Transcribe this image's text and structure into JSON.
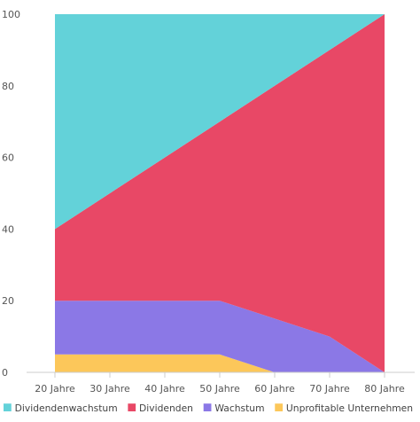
{
  "chart_data": {
    "type": "area",
    "stacked": true,
    "categories": [
      "20 Jahre",
      "30 Jahre",
      "40 Jahre",
      "50 Jahre",
      "60 Jahre",
      "70 Jahre",
      "80 Jahre"
    ],
    "series": [
      {
        "name": "Unprofitable Unternehmen",
        "color": "#fcc75a",
        "values": [
          5,
          5,
          5,
          5,
          0,
          0,
          0
        ]
      },
      {
        "name": "Wachstum",
        "color": "#8b78e6",
        "values": [
          15,
          15,
          15,
          15,
          15,
          10,
          0
        ]
      },
      {
        "name": "Dividenden",
        "color": "#e84866",
        "values": [
          20,
          30,
          40,
          50,
          65,
          80,
          100
        ]
      },
      {
        "name": "Dividendenwachstum",
        "color": "#63d2d9",
        "values": [
          60,
          50,
          40,
          30,
          20,
          10,
          0
        ]
      }
    ],
    "legend_order": [
      "Dividendenwachstum",
      "Dividenden",
      "Wachstum",
      "Unprofitable Unternehmen"
    ],
    "y_ticks": [
      "0",
      "20",
      "40",
      "60",
      "80",
      "100"
    ],
    "ylim": [
      0,
      100
    ],
    "grid": false,
    "legend_position": "bottom",
    "title": "",
    "xlabel": "",
    "ylabel": ""
  }
}
